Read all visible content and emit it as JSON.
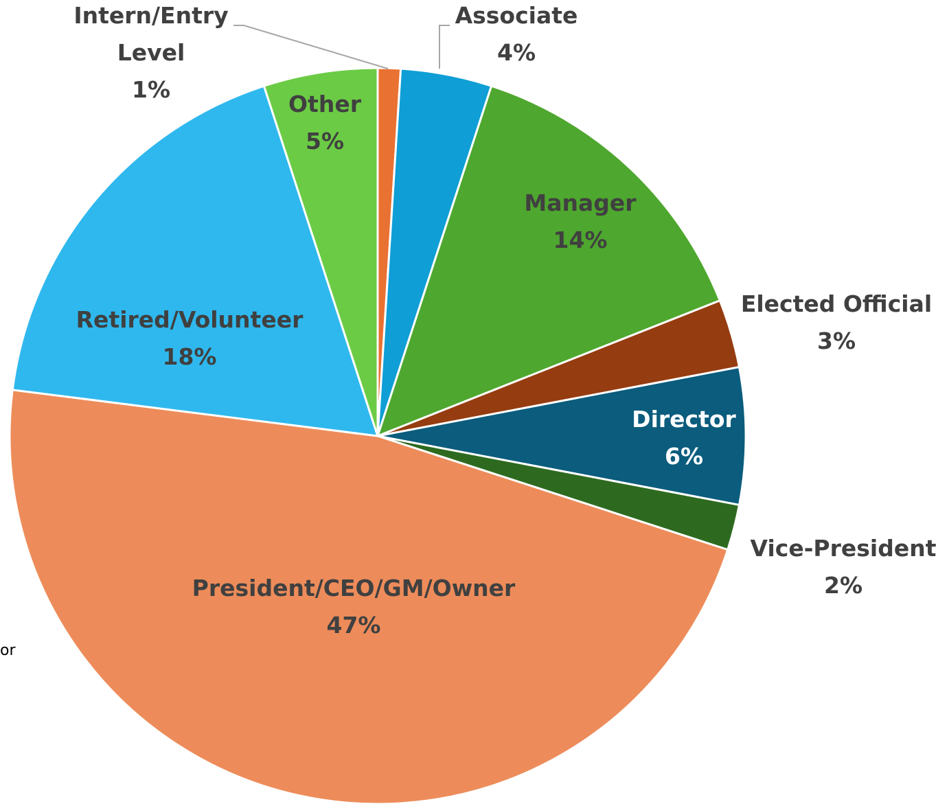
{
  "chart_data": {
    "type": "pie",
    "categories": [
      "Intern/Entry Level",
      "Associate",
      "Manager",
      "Elected Official",
      "Director",
      "Vice-President",
      "President/CEO/GM/Owner",
      "Retired/Volunteer",
      "Other"
    ],
    "values": [
      1,
      4,
      14,
      3,
      6,
      2,
      47,
      18,
      5
    ],
    "value_labels": [
      "1%",
      "4%",
      "14%",
      "3%",
      "6%",
      "2%",
      "47%",
      "18%",
      "5%"
    ],
    "colors": [
      "#e97132",
      "#0f9ed5",
      "#4ea72e",
      "#953c10",
      "#0b5c7d",
      "#2d6a1f",
      "#ed8c5a",
      "#2fb8ee",
      "#6ccb45"
    ]
  },
  "fragment": "or"
}
